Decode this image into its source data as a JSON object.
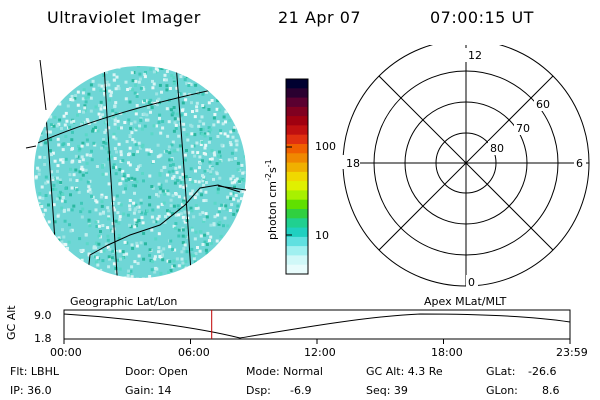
{
  "header": {
    "instrument": "Ultraviolet Imager",
    "date": "21 Apr 07",
    "time": "07:00:15 UT"
  },
  "colorbar": {
    "ticks": [
      "100",
      "10"
    ],
    "unit": "photon cm",
    "unit_exp1": "-2",
    "unit_mid": "s",
    "unit_exp2": "-1",
    "colors": [
      "#000030",
      "#2a0030",
      "#5a0030",
      "#800020",
      "#a00010",
      "#c01010",
      "#e03010",
      "#f06000",
      "#f08800",
      "#f0b000",
      "#f0d800",
      "#e0f000",
      "#a8f000",
      "#60e000",
      "#30d040",
      "#20d090",
      "#20d0c0",
      "#60e0e0",
      "#a0f0f0",
      "#d0f8f8",
      "#e8fcfc"
    ]
  },
  "polar_plot": {
    "labels": {
      "top": "12",
      "left": "18",
      "right": "6",
      "bottom": "0"
    },
    "rings": [
      "60",
      "70",
      "80"
    ]
  },
  "timeline": {
    "left_label": "Geographic Lat/Lon",
    "right_label": "Apex MLat/MLT",
    "axis_title": "GC Alt",
    "y_top": "9.0",
    "y_bottom": "1.8",
    "times": [
      "00:00",
      "06:00",
      "12:00",
      "18:00",
      "23:59"
    ],
    "marker_fraction": 0.2918
  },
  "info": {
    "flt": "Flt: LBHL",
    "ip": "IP: 36.0",
    "door": "Door: Open",
    "gain": "Gain: 14",
    "mode": "Mode: Normal",
    "dsp_label": "Dsp:",
    "dsp_value": "-6.9",
    "gc_alt": "GC Alt: 4.3 Re",
    "seq": "Seq: 39",
    "glat_label": "GLat:",
    "glat_value": "-26.6",
    "glon_label": "GLon:",
    "glon_value": "8.6"
  }
}
